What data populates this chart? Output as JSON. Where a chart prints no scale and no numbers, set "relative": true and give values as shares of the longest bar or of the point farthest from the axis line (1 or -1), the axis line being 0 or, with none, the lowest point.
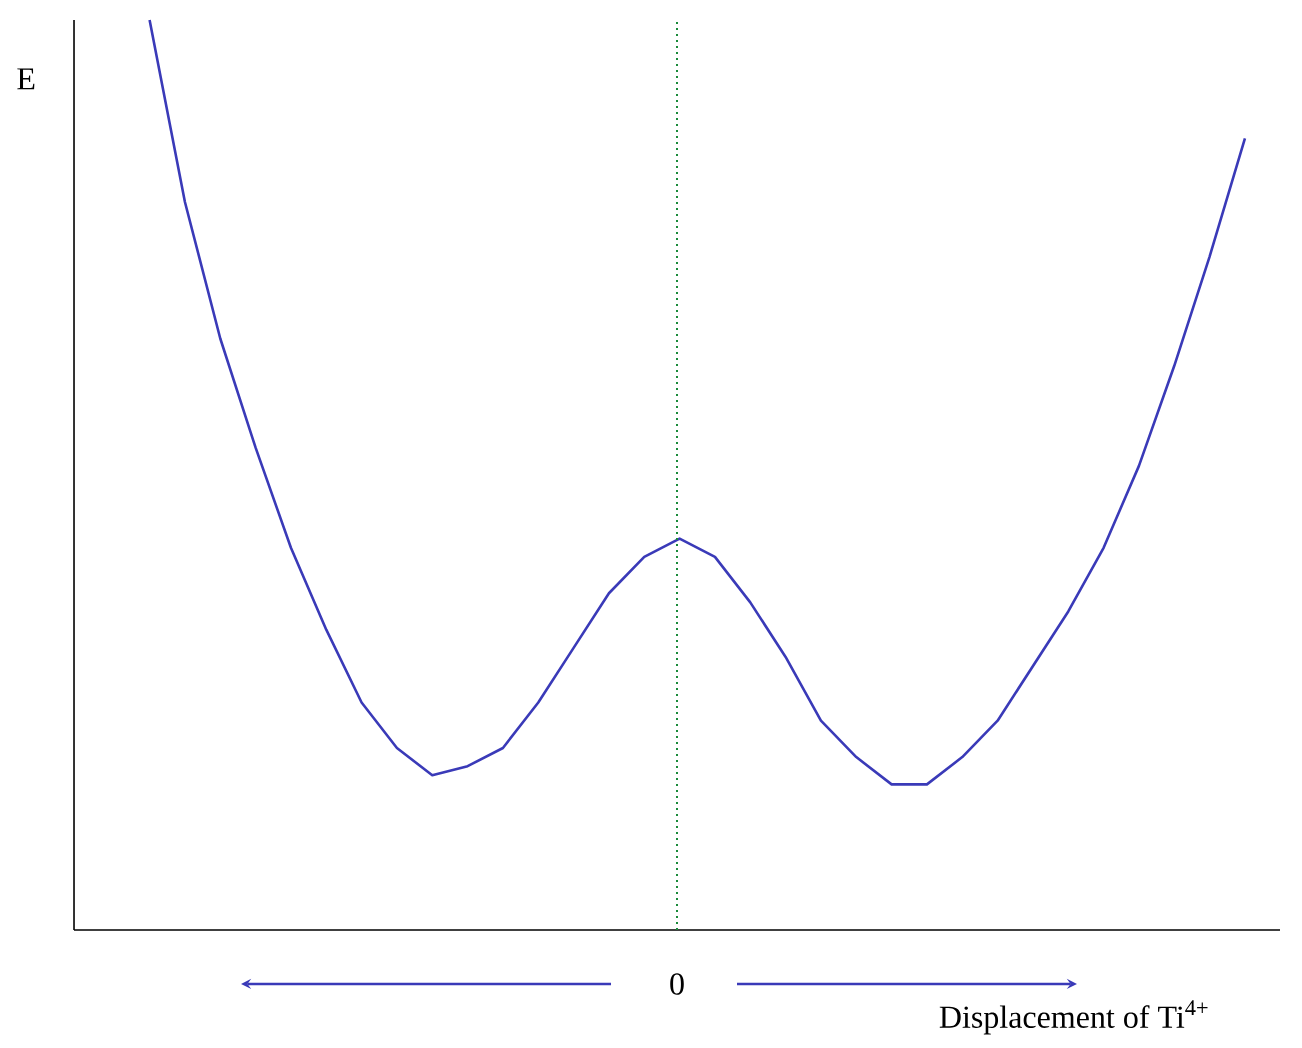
{
  "chart_data": {
    "type": "line",
    "relative": true,
    "xlabel": "Displacement of Ti$^{4+}$",
    "ylabel": "E",
    "annotations": [
      "0"
    ],
    "categories": [
      null,
      null,
      null,
      null,
      null,
      null,
      null,
      null,
      null,
      null,
      null,
      null,
      null,
      null,
      null,
      null,
      null,
      null,
      null,
      null,
      null,
      null,
      null,
      null,
      null,
      null,
      null,
      null,
      null,
      null,
      null,
      null
    ],
    "series": [
      {
        "color": "#3a3ab8",
        "values": [
          1.0,
          0.8,
          0.65,
          0.53,
          0.42,
          0.33,
          0.25,
          0.2,
          0.17,
          0.18,
          0.2,
          0.25,
          0.31,
          0.37,
          0.41,
          0.43,
          0.41,
          0.36,
          0.3,
          0.23,
          0.19,
          0.16,
          0.16,
          0.19,
          0.23,
          0.29,
          0.35,
          0.42,
          0.51,
          0.62,
          0.74,
          0.87
        ]
      }
    ]
  }
}
